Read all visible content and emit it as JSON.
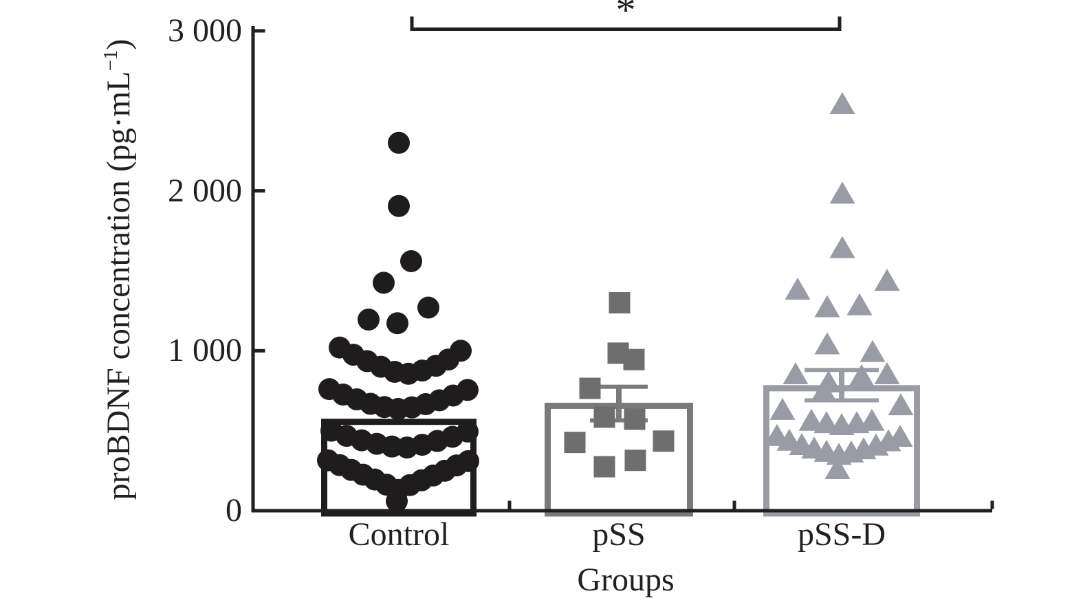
{
  "figure": {
    "ylabel": {
      "pre": "proBDNF concentration (pg·mL",
      "sup": "−1",
      "post": ")"
    }
  },
  "chart_data": {
    "type": "bar",
    "subtype": "bar-with-scatter-overlay",
    "title": "",
    "xlabel": "Groups",
    "ylabel": "proBDNF concentration (pg·mL⁻¹)",
    "ylim": [
      0,
      3000
    ],
    "grid": false,
    "yticks": [
      {
        "value": 0,
        "label": "0"
      },
      {
        "value": 1000,
        "label": "1 000"
      },
      {
        "value": 2000,
        "label": "2 000"
      },
      {
        "value": 3000,
        "label": "3 000"
      }
    ],
    "significance": {
      "label": "*",
      "between": [
        "Control",
        "pSS-D"
      ]
    },
    "axis_color": "#231f20",
    "groups": [
      {
        "label": "Control",
        "marker": "circle",
        "marker_color": "#1f1c1d",
        "bar_color": "#1f1c1d",
        "bar_mean": 575,
        "error": null,
        "points": [
          [
            0,
            2300
          ],
          [
            0,
            1905
          ],
          [
            18,
            1560
          ],
          [
            -22,
            1425
          ],
          [
            43,
            1270
          ],
          [
            -44,
            1195
          ],
          [
            -2,
            1172
          ],
          [
            -86,
            1020
          ],
          [
            -66,
            975
          ],
          [
            -46,
            935
          ],
          [
            -26,
            900
          ],
          [
            -6,
            868
          ],
          [
            14,
            856
          ],
          [
            34,
            876
          ],
          [
            54,
            906
          ],
          [
            72,
            945
          ],
          [
            90,
            1000
          ],
          [
            -101,
            760
          ],
          [
            -81,
            726
          ],
          [
            -61,
            696
          ],
          [
            -41,
            668
          ],
          [
            -21,
            648
          ],
          [
            -1,
            636
          ],
          [
            19,
            646
          ],
          [
            39,
            666
          ],
          [
            59,
            690
          ],
          [
            79,
            720
          ],
          [
            100,
            755
          ],
          [
            -98,
            500
          ],
          [
            -76,
            468
          ],
          [
            -54,
            440
          ],
          [
            -32,
            418
          ],
          [
            -10,
            401
          ],
          [
            12,
            395
          ],
          [
            34,
            412
          ],
          [
            56,
            436
          ],
          [
            78,
            462
          ],
          [
            100,
            495
          ],
          [
            -103,
            315
          ],
          [
            -86,
            285
          ],
          [
            -69,
            255
          ],
          [
            -52,
            225
          ],
          [
            -35,
            195
          ],
          [
            -18,
            163
          ],
          [
            -1,
            130
          ],
          [
            16,
            160
          ],
          [
            33,
            190
          ],
          [
            50,
            220
          ],
          [
            67,
            250
          ],
          [
            84,
            283
          ],
          [
            101,
            310
          ],
          [
            -3,
            60
          ]
        ]
      },
      {
        "label": "pSS",
        "marker": "square",
        "marker_color": "#6e6e6e",
        "bar_color": "#7a7a7a",
        "bar_mean": 675,
        "error": {
          "upper": 775,
          "lower": 565
        },
        "points": [
          [
            1,
            1300
          ],
          [
            -1,
            985
          ],
          [
            22,
            945
          ],
          [
            -42,
            765
          ],
          [
            -21,
            585
          ],
          [
            23,
            572
          ],
          [
            -64,
            427
          ],
          [
            65,
            435
          ],
          [
            -21,
            275
          ],
          [
            24,
            315
          ]
        ]
      },
      {
        "label": "pSS-D",
        "marker": "triangle",
        "marker_color": "#999ba5",
        "bar_color": "#9a9ca5",
        "bar_mean": 785,
        "error": {
          "upper": 880,
          "lower": 690
        },
        "points": [
          [
            1,
            2540
          ],
          [
            1,
            1980
          ],
          [
            1,
            1640
          ],
          [
            -64,
            1380
          ],
          [
            66,
            1435
          ],
          [
            -21,
            1270
          ],
          [
            26,
            1282
          ],
          [
            -21,
            1038
          ],
          [
            45,
            990
          ],
          [
            -67,
            851
          ],
          [
            -19,
            800
          ],
          [
            29,
            838
          ],
          [
            66,
            851
          ],
          [
            -26,
            744
          ],
          [
            86,
            657
          ],
          [
            -86,
            628
          ],
          [
            -44,
            560
          ],
          [
            -22,
            545
          ],
          [
            0,
            533
          ],
          [
            22,
            545
          ],
          [
            44,
            560
          ],
          [
            -94,
            465
          ],
          [
            -76,
            435
          ],
          [
            -58,
            408
          ],
          [
            -40,
            386
          ],
          [
            -22,
            366
          ],
          [
            -4,
            347
          ],
          [
            14,
            362
          ],
          [
            32,
            382
          ],
          [
            50,
            405
          ],
          [
            68,
            432
          ],
          [
            85,
            460
          ],
          [
            -6,
            258
          ]
        ]
      }
    ]
  }
}
